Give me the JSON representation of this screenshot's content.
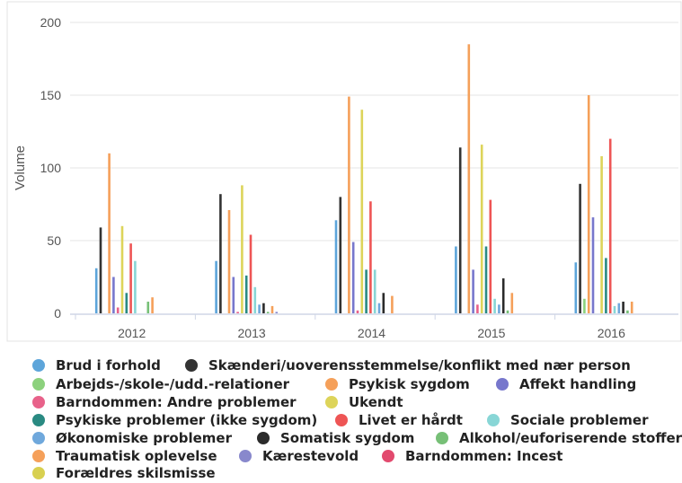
{
  "chart_data": {
    "type": "bar",
    "title": "",
    "xlabel": "",
    "ylabel": "Volume",
    "ylim": [
      0,
      200
    ],
    "yticks": [
      0,
      50,
      100,
      150,
      200
    ],
    "grid": true,
    "legend_position": "bottom",
    "categories": [
      "2012",
      "2013",
      "2014",
      "2015",
      "2016"
    ],
    "series": [
      {
        "name": "Brud i forhold",
        "color": "#5DA5DA",
        "values": [
          31,
          36,
          64,
          46,
          35
        ]
      },
      {
        "name": "Skænderi/uoverensstemmelse/konflikt med nær person",
        "color": "#333333",
        "values": [
          59,
          82,
          80,
          114,
          89
        ]
      },
      {
        "name": "Arbejds-/skole-/udd.-relationer",
        "color": "#8CD17D",
        "values": [
          0,
          0,
          0,
          0,
          10
        ]
      },
      {
        "name": "Psykisk sygdom",
        "color": "#F5A05A",
        "values": [
          110,
          71,
          149,
          185,
          150
        ]
      },
      {
        "name": "Affekt handling",
        "color": "#7777CC",
        "values": [
          25,
          25,
          49,
          30,
          66
        ]
      },
      {
        "name": "Barndommen: Andre problemer",
        "color": "#E8628A",
        "values": [
          4,
          1,
          2,
          6,
          0
        ]
      },
      {
        "name": "Ukendt",
        "color": "#DDD45A",
        "values": [
          60,
          88,
          140,
          116,
          108
        ]
      },
      {
        "name": "Psykiske problemer (ikke sygdom)",
        "color": "#2A8A82",
        "values": [
          14,
          26,
          30,
          46,
          38
        ]
      },
      {
        "name": "Livet er hårdt",
        "color": "#EE5555",
        "values": [
          48,
          54,
          77,
          78,
          120
        ]
      },
      {
        "name": "Sociale problemer",
        "color": "#88D6D6",
        "values": [
          36,
          18,
          30,
          10,
          5
        ]
      },
      {
        "name": "Økonomiske problemer",
        "color": "#6FA8DC",
        "values": [
          0,
          6,
          7,
          6,
          7
        ]
      },
      {
        "name": "Somatisk sygdom",
        "color": "#2B2B2B",
        "values": [
          0,
          7,
          14,
          24,
          8
        ]
      },
      {
        "name": "Alkohol/euforiserende stoffer",
        "color": "#77C077",
        "values": [
          8,
          1,
          0,
          2,
          2
        ]
      },
      {
        "name": "Traumatisk oplevelse",
        "color": "#F5A05A",
        "values": [
          11,
          5,
          12,
          14,
          8
        ]
      },
      {
        "name": "Kærestevold",
        "color": "#8888CC",
        "values": [
          0,
          1,
          0,
          0,
          0
        ]
      },
      {
        "name": "Barndommen: Incest",
        "color": "#E24A6E",
        "values": [
          0,
          0,
          0,
          0,
          0
        ]
      },
      {
        "name": "Forældres skilsmisse",
        "color": "#D8D050",
        "values": [
          0,
          0,
          0,
          0,
          0
        ]
      }
    ]
  }
}
